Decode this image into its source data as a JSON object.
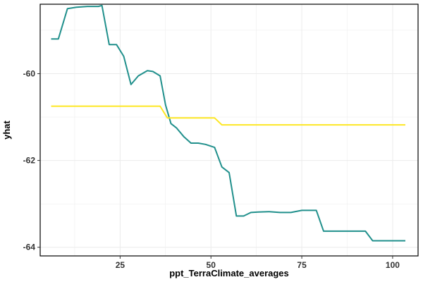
{
  "chart_data": {
    "type": "line",
    "title": "",
    "xlabel": "ppt_TerraClimate_averages",
    "ylabel": "yhat",
    "xlim": [
      3,
      107
    ],
    "ylim": [
      -64.2,
      -58.4
    ],
    "x_ticks": [
      25,
      50,
      75,
      100
    ],
    "x_tick_labels": [
      "25",
      "50",
      "75",
      "100"
    ],
    "y_ticks": [
      -64,
      -62,
      -60
    ],
    "y_tick_labels": [
      "-64",
      "-62",
      "-60"
    ],
    "grid": true,
    "legend": "none",
    "series": [
      {
        "color": "#21908C",
        "x": [
          6,
          8,
          10.5,
          13,
          16,
          19,
          20,
          22,
          24,
          26,
          28,
          30,
          32.5,
          34,
          36,
          37.5,
          39,
          40.5,
          42.5,
          44.5,
          46.5,
          48.5,
          51,
          53,
          55,
          57,
          59,
          61,
          63,
          66,
          69,
          72,
          75,
          79,
          81,
          85,
          89,
          92.5,
          94.5,
          98.5,
          103.5
        ],
        "y": [
          -59.2,
          -59.2,
          -58.5,
          -58.47,
          -58.45,
          -58.45,
          -58.43,
          -59.33,
          -59.33,
          -59.6,
          -60.25,
          -60.05,
          -59.93,
          -59.95,
          -60.05,
          -60.72,
          -61.15,
          -61.25,
          -61.45,
          -61.6,
          -61.6,
          -61.63,
          -61.7,
          -62.15,
          -62.28,
          -63.28,
          -63.28,
          -63.2,
          -63.19,
          -63.18,
          -63.2,
          -63.2,
          -63.15,
          -63.15,
          -63.63,
          -63.63,
          -63.63,
          -63.63,
          -63.85,
          -63.85,
          -63.85
        ]
      },
      {
        "color": "#FDE725",
        "x": [
          6,
          36,
          38,
          51,
          53,
          103.5
        ],
        "y": [
          -60.75,
          -60.75,
          -61.02,
          -61.02,
          -61.18,
          -61.18
        ]
      }
    ]
  }
}
